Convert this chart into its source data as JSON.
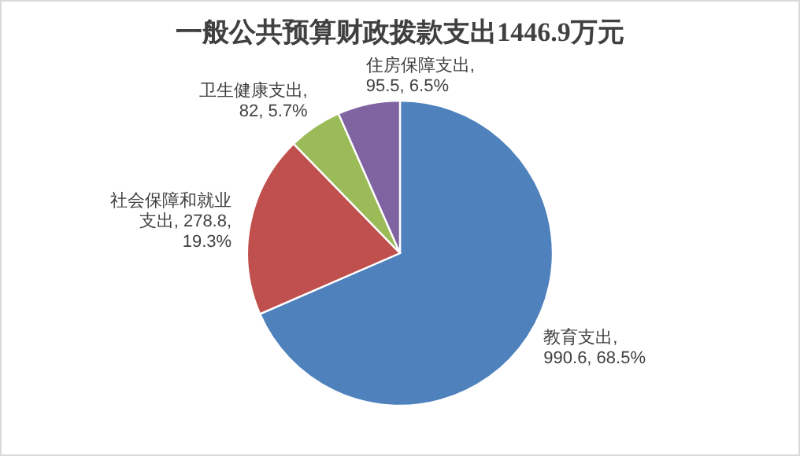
{
  "chart_data": {
    "type": "pie",
    "title": "一般公共预算财政拨款支出1446.9万元",
    "categories": [
      "教育支出",
      "社会保障和就业支出",
      "卫生健康支出",
      "住房保障支出"
    ],
    "values": [
      990.6,
      278.8,
      82,
      95.5
    ],
    "value_labels": [
      ", 990.6, 68.5%",
      ", 278.8, 19.3%",
      ", 82, 5.7%",
      ", 95.5, 6.5%"
    ],
    "colors": [
      "#4f81bd",
      "#c0504d",
      "#9bbb59",
      "#8064a2"
    ],
    "legend": false
  }
}
